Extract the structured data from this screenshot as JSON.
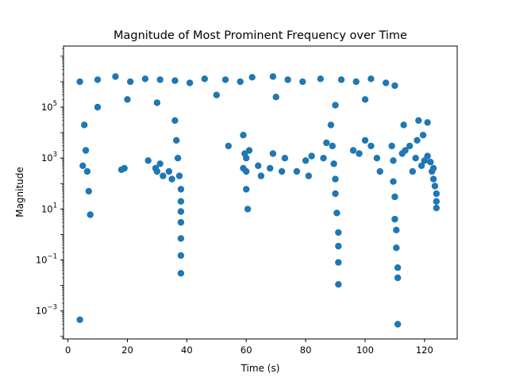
{
  "chart_data": {
    "type": "scatter",
    "title": "Magnitude of Most Prominent Frequency over Time",
    "xlabel": "Time (s)",
    "ylabel": "Magnitude",
    "xlim": [
      -1.5,
      131
    ],
    "ylim_log10": [
      -4.1,
      7.4
    ],
    "yscale": "log",
    "grid": false,
    "marker_color": "#1f77b4",
    "x_ticks": [
      0,
      20,
      40,
      60,
      80,
      100,
      120
    ],
    "y_ticks": [
      {
        "base": "10",
        "exp": "5"
      },
      {
        "base": "10",
        "exp": "3"
      },
      {
        "base": "10",
        "exp": "1"
      },
      {
        "base": "10",
        "exp": "−1"
      },
      {
        "base": "10",
        "exp": "−3"
      }
    ],
    "y_tick_values": [
      100000,
      1000,
      10,
      0.1,
      0.001
    ],
    "points": [
      [
        4.0,
        0.00045
      ],
      [
        111.0,
        0.0003
      ],
      [
        38.0,
        0.03
      ],
      [
        91.0,
        0.011
      ],
      [
        111.0,
        0.02
      ],
      [
        38.0,
        0.15
      ],
      [
        38.0,
        0.7
      ],
      [
        38.0,
        3
      ],
      [
        38.0,
        8
      ],
      [
        38.0,
        20
      ],
      [
        38.0,
        60
      ],
      [
        37.5,
        200
      ],
      [
        37.0,
        1000
      ],
      [
        36.5,
        5000
      ],
      [
        36.0,
        30000
      ],
      [
        91.0,
        0.08
      ],
      [
        91.0,
        0.35
      ],
      [
        91.0,
        1.2
      ],
      [
        90.5,
        7
      ],
      [
        90.0,
        40
      ],
      [
        90.0,
        150
      ],
      [
        89.5,
        600
      ],
      [
        89.0,
        3000
      ],
      [
        88.5,
        20000
      ],
      [
        111.0,
        0.05
      ],
      [
        110.5,
        0.3
      ],
      [
        110.5,
        1.5
      ],
      [
        110.0,
        4
      ],
      [
        110.0,
        30
      ],
      [
        109.5,
        120
      ],
      [
        109.5,
        800
      ],
      [
        109.0,
        3000
      ],
      [
        60.5,
        10
      ],
      [
        60.0,
        60
      ],
      [
        60.0,
        300
      ],
      [
        59.5,
        1500
      ],
      [
        59.0,
        8000
      ],
      [
        7.5,
        6
      ],
      [
        7.0,
        50
      ],
      [
        6.5,
        300
      ],
      [
        6.0,
        2000
      ],
      [
        5.5,
        20000
      ],
      [
        5.0,
        500
      ],
      [
        18.0,
        350
      ],
      [
        19.0,
        400
      ],
      [
        27.0,
        800
      ],
      [
        29.5,
        400
      ],
      [
        30.0,
        300
      ],
      [
        31.0,
        600
      ],
      [
        32.0,
        200
      ],
      [
        34.0,
        300
      ],
      [
        35.0,
        150
      ],
      [
        54.0,
        3000
      ],
      [
        59.0,
        400
      ],
      [
        60.0,
        1000
      ],
      [
        61.0,
        2000
      ],
      [
        64.0,
        500
      ],
      [
        65.0,
        200
      ],
      [
        68.0,
        400
      ],
      [
        69.0,
        1500
      ],
      [
        72.0,
        300
      ],
      [
        73.0,
        1000
      ],
      [
        77.0,
        300
      ],
      [
        80.0,
        800
      ],
      [
        81.0,
        200
      ],
      [
        82.0,
        1200
      ],
      [
        86.0,
        1000
      ],
      [
        87.0,
        4000
      ],
      [
        96.0,
        2000
      ],
      [
        98.0,
        1500
      ],
      [
        104.0,
        1000
      ],
      [
        105.0,
        300
      ],
      [
        102.0,
        3000
      ],
      [
        100.0,
        5000
      ],
      [
        116.0,
        300
      ],
      [
        117.0,
        1000
      ],
      [
        119.0,
        500
      ],
      [
        120.0,
        800
      ],
      [
        121.0,
        1200
      ],
      [
        122.0,
        700
      ],
      [
        122.5,
        300
      ],
      [
        123.0,
        150
      ],
      [
        123.5,
        80
      ],
      [
        124.0,
        40
      ],
      [
        124.0,
        20
      ],
      [
        124.0,
        11
      ],
      [
        123.0,
        400
      ],
      [
        4.0,
        1000000
      ],
      [
        10.0,
        1200000
      ],
      [
        16.0,
        1600000
      ],
      [
        21.0,
        1000000
      ],
      [
        26.0,
        1300000
      ],
      [
        31.0,
        1200000
      ],
      [
        36.0,
        1100000
      ],
      [
        41.0,
        900000
      ],
      [
        46.0,
        1300000
      ],
      [
        53.0,
        1200000
      ],
      [
        58.0,
        1000000
      ],
      [
        62.0,
        1500000
      ],
      [
        69.0,
        1600000
      ],
      [
        74.0,
        1200000
      ],
      [
        79.0,
        1000000
      ],
      [
        85.0,
        1300000
      ],
      [
        92.0,
        1200000
      ],
      [
        97.0,
        1000000
      ],
      [
        102.0,
        1300000
      ],
      [
        107.0,
        900000
      ],
      [
        110.0,
        700000
      ],
      [
        113.0,
        20000
      ],
      [
        118.0,
        30000
      ],
      [
        121.0,
        25000
      ],
      [
        10.0,
        100000
      ],
      [
        20.0,
        200000
      ],
      [
        30.0,
        150000
      ],
      [
        50.0,
        300000
      ],
      [
        70.0,
        250000
      ],
      [
        90.0,
        120000
      ],
      [
        100.0,
        200000
      ],
      [
        115.0,
        3000
      ],
      [
        117.5,
        5000
      ],
      [
        119.5,
        8000
      ],
      [
        113.5,
        2000
      ],
      [
        112.5,
        1500
      ]
    ]
  }
}
